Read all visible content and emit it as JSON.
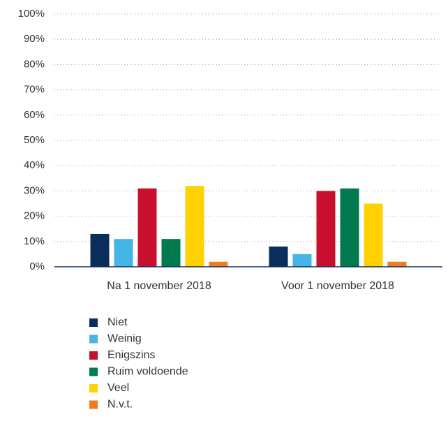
{
  "chart_data": {
    "type": "bar",
    "categories": [
      "Na 1 november 2018",
      "Voor 1 november 2018"
    ],
    "series": [
      {
        "name": "Niet",
        "color": "#0b2d5b",
        "values": [
          13,
          8
        ]
      },
      {
        "name": "Weinig",
        "color": "#45b4e6",
        "values": [
          11,
          5
        ]
      },
      {
        "name": "Enigszins",
        "color": "#c8102e",
        "values": [
          31,
          30
        ]
      },
      {
        "name": "Ruim voldoende",
        "color": "#007a4e",
        "values": [
          11,
          31
        ]
      },
      {
        "name": "Veel",
        "color": "#ffd100",
        "values": [
          32,
          25
        ]
      },
      {
        "name": "N.v.t.",
        "color": "#ee7d22",
        "values": [
          2,
          2
        ]
      }
    ],
    "ylim": [
      0,
      100
    ],
    "yticks": [
      {
        "value": 0,
        "label": "0%"
      },
      {
        "value": 10,
        "label": "10%"
      },
      {
        "value": 20,
        "label": "20%"
      },
      {
        "value": 30,
        "label": "30%"
      },
      {
        "value": 40,
        "label": "40%"
      },
      {
        "value": 50,
        "label": "50%"
      },
      {
        "value": 60,
        "label": "60%"
      },
      {
        "value": 70,
        "label": "70%"
      },
      {
        "value": 80,
        "label": "80%"
      },
      {
        "value": 90,
        "label": "90%"
      },
      {
        "value": 100,
        "label": "100%"
      }
    ],
    "grid": true
  }
}
